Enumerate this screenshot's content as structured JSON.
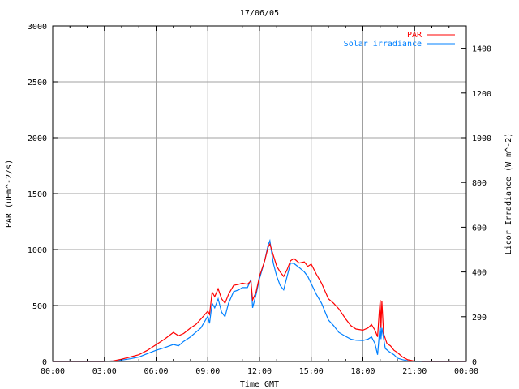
{
  "chart_data": {
    "type": "line",
    "title": "17/06/05",
    "xlabel": "Time GMT",
    "ylabel": "PAR (uEm^-2/s)",
    "y2label": "Licor Irradiance (W m^-2)",
    "xlim": [
      0,
      24
    ],
    "ylim": [
      0,
      3000
    ],
    "y2lim": [
      0,
      1500
    ],
    "xticks": [
      "00:00",
      "03:00",
      "06:00",
      "09:00",
      "12:00",
      "15:00",
      "18:00",
      "21:00",
      "00:00"
    ],
    "yticks": [
      0,
      500,
      1000,
      1500,
      2000,
      2500,
      3000
    ],
    "y2ticks": [
      0,
      200,
      400,
      600,
      800,
      1000,
      1200,
      1400
    ],
    "grid": true,
    "legend_position": "top-right",
    "series": [
      {
        "name": "PAR",
        "axis": "y",
        "color": "#ff0000",
        "points": [
          [
            0,
            0
          ],
          [
            3,
            0
          ],
          [
            3.5,
            5
          ],
          [
            4,
            20
          ],
          [
            4.5,
            40
          ],
          [
            5,
            60
          ],
          [
            5.5,
            100
          ],
          [
            6,
            150
          ],
          [
            6.5,
            200
          ],
          [
            7,
            260
          ],
          [
            7.3,
            230
          ],
          [
            7.6,
            250
          ],
          [
            8,
            300
          ],
          [
            8.3,
            330
          ],
          [
            8.6,
            380
          ],
          [
            9,
            450
          ],
          [
            9.1,
            420
          ],
          [
            9.25,
            620
          ],
          [
            9.4,
            580
          ],
          [
            9.6,
            650
          ],
          [
            9.8,
            560
          ],
          [
            10,
            520
          ],
          [
            10.2,
            600
          ],
          [
            10.5,
            680
          ],
          [
            10.8,
            690
          ],
          [
            11,
            700
          ],
          [
            11.3,
            690
          ],
          [
            11.5,
            720
          ],
          [
            11.6,
            550
          ],
          [
            11.8,
            620
          ],
          [
            12,
            760
          ],
          [
            12.3,
            900
          ],
          [
            12.5,
            1020
          ],
          [
            12.6,
            1050
          ],
          [
            12.8,
            950
          ],
          [
            13,
            850
          ],
          [
            13.2,
            800
          ],
          [
            13.4,
            760
          ],
          [
            13.6,
            820
          ],
          [
            13.8,
            900
          ],
          [
            14,
            920
          ],
          [
            14.3,
            880
          ],
          [
            14.6,
            890
          ],
          [
            14.8,
            850
          ],
          [
            15,
            870
          ],
          [
            15.3,
            780
          ],
          [
            15.6,
            700
          ],
          [
            16,
            560
          ],
          [
            16.3,
            520
          ],
          [
            16.6,
            470
          ],
          [
            17,
            380
          ],
          [
            17.3,
            320
          ],
          [
            17.6,
            290
          ],
          [
            18,
            280
          ],
          [
            18.3,
            300
          ],
          [
            18.5,
            330
          ],
          [
            18.7,
            280
          ],
          [
            18.85,
            220
          ],
          [
            18.95,
            450
          ],
          [
            19,
            550
          ],
          [
            19.05,
            300
          ],
          [
            19.1,
            540
          ],
          [
            19.2,
            250
          ],
          [
            19.4,
            160
          ],
          [
            19.6,
            140
          ],
          [
            19.8,
            100
          ],
          [
            20,
            80
          ],
          [
            20.3,
            40
          ],
          [
            20.6,
            15
          ],
          [
            21,
            3
          ],
          [
            21.5,
            0
          ],
          [
            24,
            0
          ]
        ]
      },
      {
        "name": "Solar irradiance",
        "axis": "y2",
        "color": "#0080ff",
        "points": [
          [
            0,
            0
          ],
          [
            3,
            0
          ],
          [
            3.5,
            2
          ],
          [
            4,
            6
          ],
          [
            4.5,
            12
          ],
          [
            5,
            20
          ],
          [
            5.5,
            35
          ],
          [
            6,
            50
          ],
          [
            6.5,
            62
          ],
          [
            7,
            76
          ],
          [
            7.3,
            70
          ],
          [
            7.6,
            90
          ],
          [
            8,
            110
          ],
          [
            8.3,
            130
          ],
          [
            8.6,
            150
          ],
          [
            9,
            203
          ],
          [
            9.1,
            170
          ],
          [
            9.25,
            260
          ],
          [
            9.4,
            240
          ],
          [
            9.6,
            280
          ],
          [
            9.8,
            220
          ],
          [
            10,
            200
          ],
          [
            10.2,
            260
          ],
          [
            10.5,
            312
          ],
          [
            10.8,
            320
          ],
          [
            11,
            330
          ],
          [
            11.3,
            330
          ],
          [
            11.5,
            366
          ],
          [
            11.6,
            240
          ],
          [
            11.8,
            300
          ],
          [
            12,
            370
          ],
          [
            12.3,
            450
          ],
          [
            12.5,
            520
          ],
          [
            12.6,
            540
          ],
          [
            12.8,
            440
          ],
          [
            13,
            380
          ],
          [
            13.2,
            340
          ],
          [
            13.4,
            320
          ],
          [
            13.6,
            380
          ],
          [
            13.8,
            440
          ],
          [
            14,
            438
          ],
          [
            14.3,
            420
          ],
          [
            14.6,
            400
          ],
          [
            14.8,
            380
          ],
          [
            15,
            348
          ],
          [
            15.3,
            300
          ],
          [
            15.6,
            260
          ],
          [
            16,
            185
          ],
          [
            16.3,
            160
          ],
          [
            16.6,
            130
          ],
          [
            17,
            112
          ],
          [
            17.3,
            100
          ],
          [
            17.6,
            95
          ],
          [
            18,
            94
          ],
          [
            18.3,
            100
          ],
          [
            18.5,
            110
          ],
          [
            18.7,
            80
          ],
          [
            18.85,
            30
          ],
          [
            18.95,
            120
          ],
          [
            19,
            167
          ],
          [
            19.05,
            100
          ],
          [
            19.1,
            150
          ],
          [
            19.3,
            58
          ],
          [
            19.5,
            45
          ],
          [
            19.8,
            30
          ],
          [
            20,
            15
          ],
          [
            20.3,
            8
          ],
          [
            20.6,
            3
          ],
          [
            21,
            0
          ],
          [
            24,
            0
          ]
        ]
      }
    ]
  }
}
